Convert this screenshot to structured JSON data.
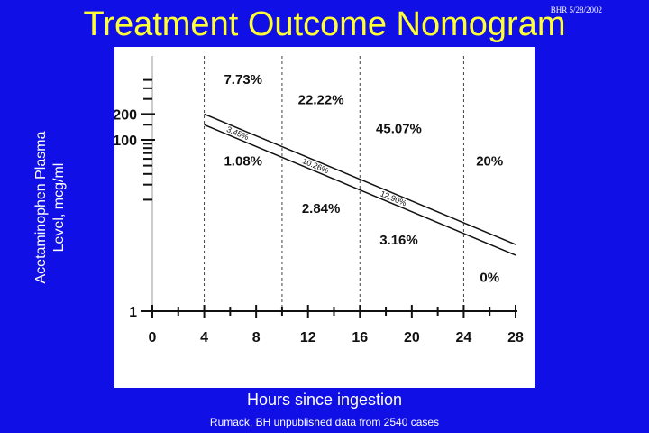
{
  "slide": {
    "title": "Treatment Outcome Nomogram",
    "stamp": "BHR 5/28/2002",
    "ylabel_line1": "Acetaminophen Plasma",
    "ylabel_line2": "Level, mcg/ml",
    "xlabel": "Hours since ingestion",
    "source": "Rumack, BH unpublished data from 2540 cases"
  },
  "colors": {
    "background": "#1010e6",
    "title": "#ffff33",
    "text": "#ffffff",
    "plot_bg": "#ffffff",
    "ink": "#111111"
  },
  "chart_data": {
    "type": "line",
    "x_ticks": [
      0,
      4,
      8,
      12,
      16,
      20,
      24,
      28
    ],
    "x_tick_labels": [
      "0",
      "4",
      "8",
      "12",
      "16",
      "20",
      "24",
      "28"
    ],
    "xlim": [
      0,
      28
    ],
    "y_scale": "log",
    "y_ticks": [
      1,
      100,
      200
    ],
    "y_tick_labels": [
      "1",
      "100",
      "200"
    ],
    "vertical_dividers": [
      4,
      10,
      16,
      24
    ],
    "series": [
      {
        "points": [
          [
            4,
            200
          ],
          [
            28,
            6
          ]
        ]
      },
      {
        "points": [
          [
            4,
            150
          ],
          [
            28,
            4.5
          ]
        ]
      }
    ],
    "line_labels": [
      {
        "text": "3.45%",
        "x": 6.5
      },
      {
        "text": "10.26%",
        "x": 12.5
      },
      {
        "text": "12.90%",
        "x": 18.5
      }
    ],
    "region_labels": [
      {
        "text": "7.73%",
        "x": 7,
        "y": 450
      },
      {
        "text": "22.22%",
        "x": 13,
        "y": 260
      },
      {
        "text": "45.07%",
        "x": 19,
        "y": 120
      },
      {
        "text": "20%",
        "x": 26,
        "y": 50
      },
      {
        "text": "1.08%",
        "x": 7,
        "y": 50
      },
      {
        "text": "2.84%",
        "x": 13,
        "y": 14
      },
      {
        "text": "3.16%",
        "x": 19,
        "y": 6
      },
      {
        "text": "0%",
        "x": 26,
        "y": 2.2
      }
    ]
  }
}
